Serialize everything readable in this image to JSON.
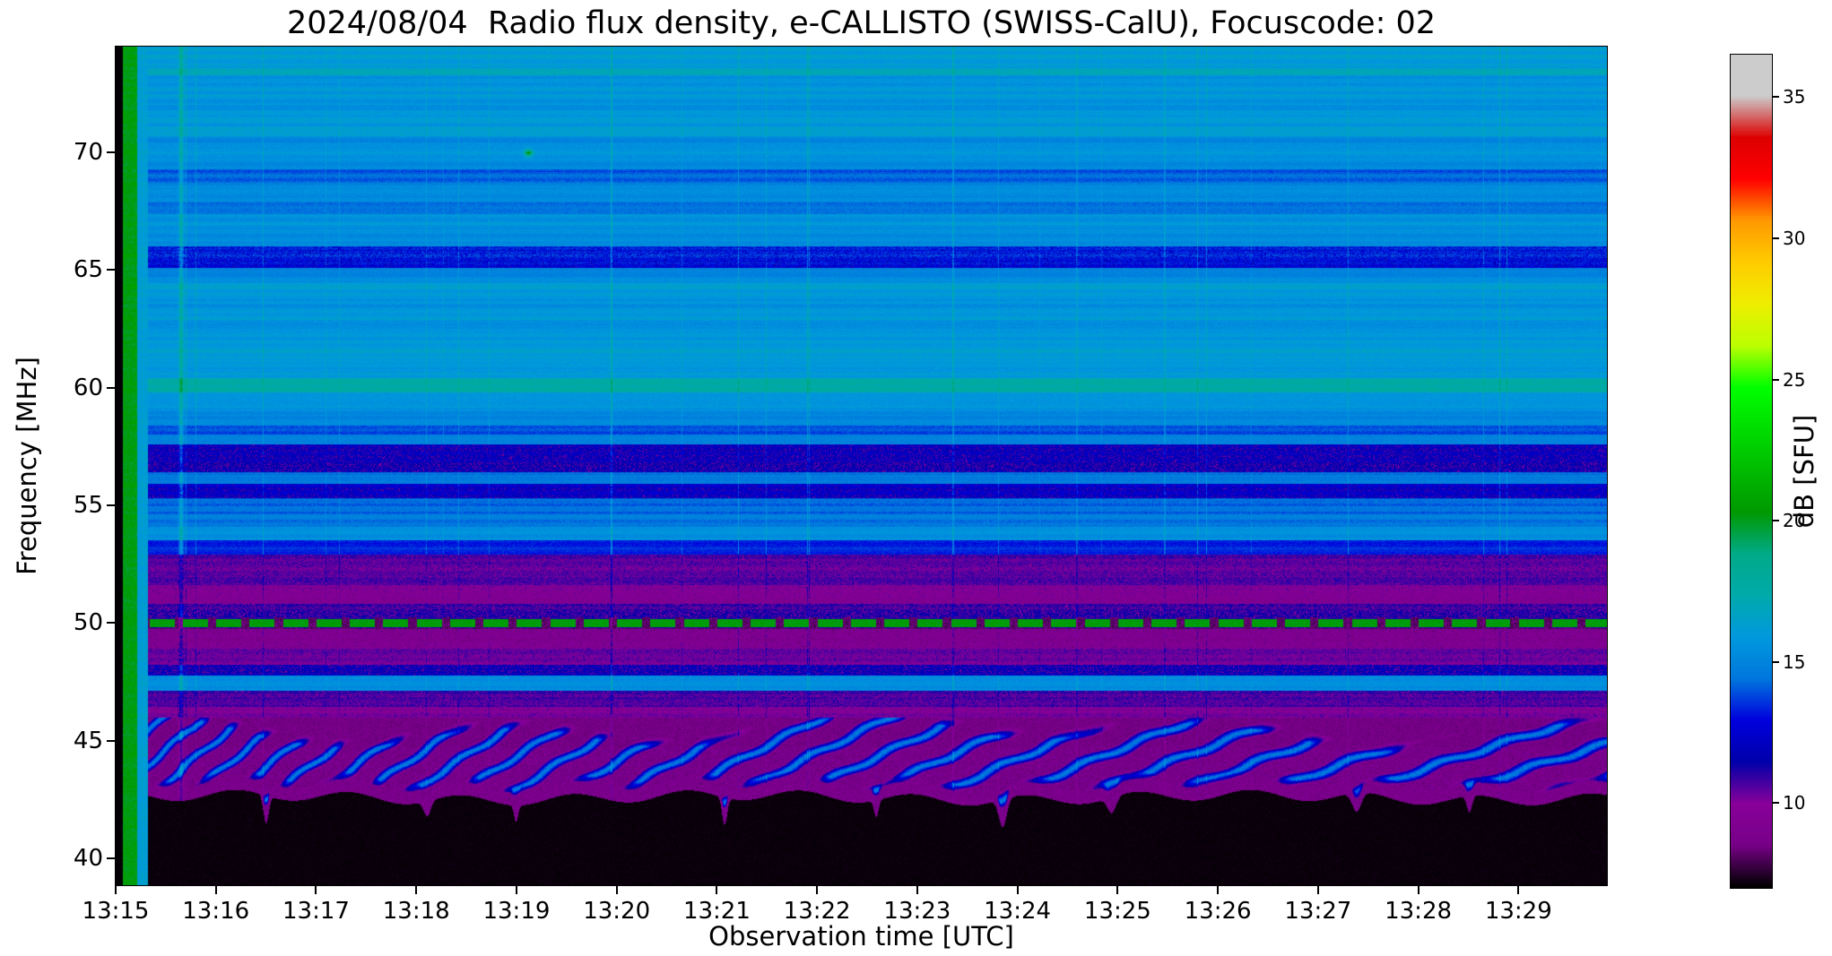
{
  "figure": {
    "title": "2024/08/04  Radio flux density, e-CALLISTO (SWISS-CalU), Focuscode: 02"
  },
  "chart_data": {
    "type": "heatmap",
    "title": "2024/08/04  Radio flux density, e-CALLISTO (SWISS-CalU), Focuscode: 02",
    "xlabel": "Observation time [UTC]",
    "ylabel": "Frequency [MHz]",
    "x_ticks": [
      "13:15",
      "13:16",
      "13:17",
      "13:18",
      "13:19",
      "13:20",
      "13:21",
      "13:22",
      "13:23",
      "13:24",
      "13:25",
      "13:26",
      "13:27",
      "13:28",
      "13:29"
    ],
    "x_tick_interval_s": 60,
    "duration_s": 893,
    "y_ticks": [
      "40",
      "45",
      "50",
      "55",
      "60",
      "65",
      "70"
    ],
    "freq_range_mhz": [
      38.85,
      74.5
    ],
    "colorbar": {
      "label": "dB [SFU]",
      "ticks": [
        "10",
        "15",
        "20",
        "25",
        "30",
        "35"
      ],
      "tick_values": [
        10,
        15,
        20,
        25,
        30,
        35
      ],
      "range": [
        7.0,
        36.5
      ],
      "colormap": "nipy_spectral",
      "stops": [
        [
          0.0,
          0,
          0,
          0
        ],
        [
          0.05,
          119,
          0,
          136
        ],
        [
          0.1,
          136,
          0,
          153
        ],
        [
          0.15,
          0,
          0,
          170
        ],
        [
          0.2,
          0,
          0,
          221
        ],
        [
          0.25,
          0,
          119,
          221
        ],
        [
          0.3,
          0,
          153,
          221
        ],
        [
          0.35,
          0,
          170,
          170
        ],
        [
          0.4,
          0,
          170,
          136
        ],
        [
          0.45,
          0,
          153,
          0
        ],
        [
          0.5,
          0,
          187,
          0
        ],
        [
          0.55,
          0,
          221,
          0
        ],
        [
          0.6,
          0,
          255,
          0
        ],
        [
          0.65,
          187,
          255,
          0
        ],
        [
          0.7,
          238,
          238,
          0
        ],
        [
          0.75,
          255,
          204,
          0
        ],
        [
          0.8,
          255,
          153,
          0
        ],
        [
          0.85,
          255,
          0,
          0
        ],
        [
          0.9,
          221,
          0,
          0
        ],
        [
          0.95,
          204,
          204,
          204
        ],
        [
          1.0,
          204,
          204,
          204
        ]
      ]
    },
    "bands_format": [
      "f_hi_mhz",
      "f_lo_mhz",
      "mean_db",
      "striation_db",
      "speckle_mode"
    ],
    "bands": [
      [
        74.5,
        73.6,
        16.0,
        0.5,
        0
      ],
      [
        73.6,
        73.3,
        17.1,
        0.3,
        0
      ],
      [
        73.3,
        71.1,
        15.7,
        0.6,
        0
      ],
      [
        71.1,
        70.7,
        16.4,
        0.4,
        0
      ],
      [
        70.7,
        69.3,
        15.4,
        0.5,
        0
      ],
      [
        69.3,
        68.6,
        14.3,
        0.4,
        0
      ],
      [
        68.6,
        67.9,
        15.3,
        0.4,
        0
      ],
      [
        67.9,
        67.4,
        14.6,
        0.4,
        0
      ],
      [
        67.4,
        66.0,
        15.5,
        0.5,
        0
      ],
      [
        66.0,
        65.1,
        13.2,
        0.4,
        1
      ],
      [
        65.1,
        64.5,
        15.2,
        0.4,
        0
      ],
      [
        64.5,
        62.9,
        15.8,
        0.5,
        0
      ],
      [
        62.9,
        62.5,
        15.2,
        0.3,
        0
      ],
      [
        62.5,
        60.4,
        16.0,
        0.5,
        0
      ],
      [
        60.4,
        59.8,
        17.4,
        0.3,
        0
      ],
      [
        59.8,
        59.0,
        15.8,
        0.4,
        0
      ],
      [
        59.0,
        58.4,
        14.9,
        0.4,
        0
      ],
      [
        58.4,
        58.0,
        13.9,
        0.3,
        0
      ],
      [
        58.0,
        57.6,
        15.0,
        0.3,
        0
      ],
      [
        57.6,
        56.4,
        12.0,
        0.4,
        1
      ],
      [
        56.4,
        55.9,
        14.6,
        0.3,
        0
      ],
      [
        55.9,
        55.3,
        12.3,
        0.4,
        1
      ],
      [
        55.3,
        54.1,
        14.4,
        0.5,
        0
      ],
      [
        54.1,
        53.5,
        15.7,
        0.3,
        0
      ],
      [
        53.5,
        52.9,
        13.3,
        0.3,
        0
      ],
      [
        52.9,
        51.6,
        10.6,
        0.3,
        2
      ],
      [
        51.6,
        50.8,
        9.6,
        0.3,
        2
      ],
      [
        50.8,
        50.25,
        11.2,
        0.3,
        1
      ],
      [
        49.75,
        48.9,
        9.4,
        0.3,
        2
      ],
      [
        48.9,
        48.2,
        10.2,
        0.3,
        2
      ],
      [
        48.2,
        47.75,
        12.1,
        0.3,
        1
      ],
      [
        47.75,
        47.1,
        15.2,
        0.3,
        0
      ],
      [
        47.1,
        46.4,
        10.8,
        0.3,
        2
      ],
      [
        46.4,
        45.95,
        9.8,
        0.3,
        2
      ]
    ],
    "features": {
      "calibration": {
        "black_end_s": 4,
        "green_end_s": 12.5,
        "cyan_end_s": 19,
        "green_db": 20.2,
        "cyan_db": 16.2
      },
      "dash_line": {
        "freq": 50.0,
        "half_width": 0.17,
        "level_db": 20.3,
        "gap_db": 8.2,
        "period_s": 20,
        "on_s": 15
      },
      "bright_vline": {
        "t_s": 39,
        "width_s": 2.5,
        "boost_db": 2.2
      },
      "green_blob": {
        "t_s": 247,
        "f_mhz": 70.0,
        "boost_db": 4.5
      },
      "arc_zone": {
        "f_top_mhz": 45.95,
        "f_bot_mhz": 42.55,
        "base_db": 8.6,
        "arc_boost_db": 6.0
      }
    }
  }
}
